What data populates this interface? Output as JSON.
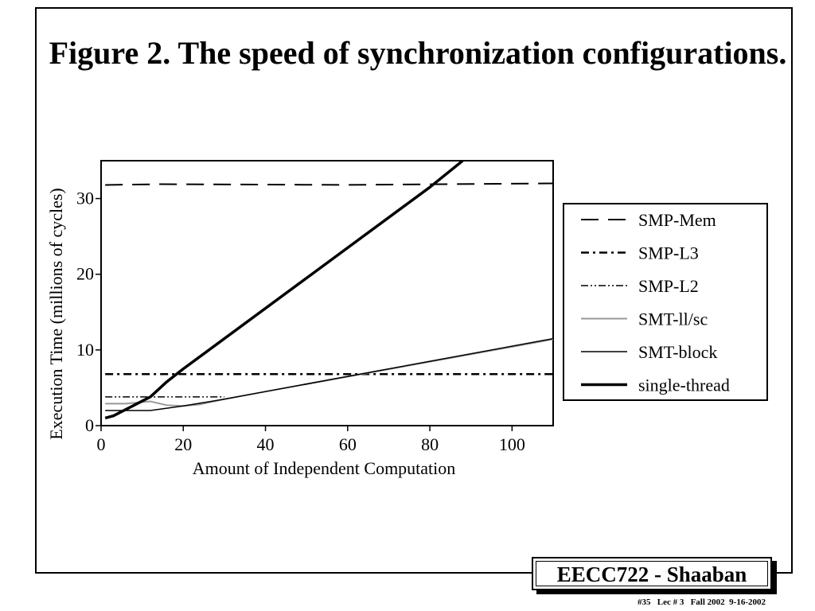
{
  "slide": {
    "title": "Figure 2. The speed of synchronization configurations.",
    "footer_badge": "EECC722 - Shaaban",
    "footer_info": "#35   Lec # 3   Fall 2002  9-16-2002"
  },
  "chart_data": {
    "type": "line",
    "title": "",
    "xlabel": "Amount of Independent Computation",
    "ylabel": "Execution Time (millions of cycles)",
    "xlim": [
      0,
      110
    ],
    "ylim": [
      0,
      35
    ],
    "xticks": [
      0,
      20,
      40,
      60,
      80,
      100
    ],
    "yticks": [
      0,
      10,
      20,
      30
    ],
    "grid": false,
    "legend_position": "right",
    "series": [
      {
        "name": "SMP-Mem",
        "style": "dash",
        "points": [
          [
            1,
            31.8
          ],
          [
            15,
            31.9
          ],
          [
            60,
            31.8
          ],
          [
            110,
            32.0
          ]
        ]
      },
      {
        "name": "SMP-L3",
        "style": "dash-dot",
        "points": [
          [
            1,
            6.8
          ],
          [
            110,
            6.8
          ]
        ]
      },
      {
        "name": "SMP-L2",
        "style": "dash-dot-dot",
        "points": [
          [
            1,
            3.8
          ],
          [
            30,
            3.8
          ]
        ]
      },
      {
        "name": "SMT-ll/sc",
        "style": "gray",
        "points": [
          [
            1,
            2.9
          ],
          [
            6,
            2.9
          ],
          [
            12,
            3.2
          ],
          [
            16,
            2.7
          ],
          [
            20,
            2.6
          ],
          [
            24,
            2.8
          ],
          [
            30,
            3.5
          ],
          [
            40,
            4.5
          ],
          [
            110,
            11.4
          ]
        ]
      },
      {
        "name": "SMT-block",
        "style": "thin",
        "points": [
          [
            1,
            2.0
          ],
          [
            12,
            2.0
          ],
          [
            20,
            2.6
          ],
          [
            30,
            3.5
          ],
          [
            40,
            4.5
          ],
          [
            60,
            6.5
          ],
          [
            80,
            8.5
          ],
          [
            110,
            11.5
          ]
        ]
      },
      {
        "name": "single-thread",
        "style": "thick",
        "points": [
          [
            1,
            1.0
          ],
          [
            3,
            1.3
          ],
          [
            12,
            3.8
          ],
          [
            16,
            5.8
          ],
          [
            20,
            7.5
          ],
          [
            50,
            19.5
          ],
          [
            80,
            31.5
          ],
          [
            88,
            35.0
          ]
        ]
      }
    ]
  }
}
